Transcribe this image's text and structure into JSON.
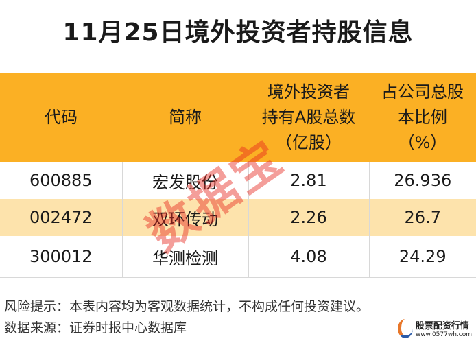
{
  "title": "11月25日境外投资者持股信息",
  "table": {
    "headers": [
      [
        "代码"
      ],
      [
        "简称"
      ],
      [
        "境外投资者",
        "持有A股总数",
        "（亿股）"
      ],
      [
        "占公司总股",
        "本比例",
        "（%）"
      ]
    ],
    "rows": [
      {
        "code": "600885",
        "name": "宏发股份",
        "shares": "2.81",
        "ratio": "26.936"
      },
      {
        "code": "002472",
        "name": "双环传动",
        "shares": "2.26",
        "ratio": "26.7"
      },
      {
        "code": "300012",
        "name": "华测检测",
        "shares": "4.08",
        "ratio": "24.29"
      }
    ]
  },
  "watermark": "数据宝",
  "footer": {
    "risk": "风险提示：本表内容均为客观数据统计，不构成任何投资建议。",
    "source": "数据来源：证券时报中心数据库"
  },
  "logo": {
    "name": "股票配资行情",
    "url": "www.0577wh.com"
  },
  "colors": {
    "header": "#fbb024",
    "alt_row": "#fde3ac",
    "watermark": "#e6281e"
  }
}
